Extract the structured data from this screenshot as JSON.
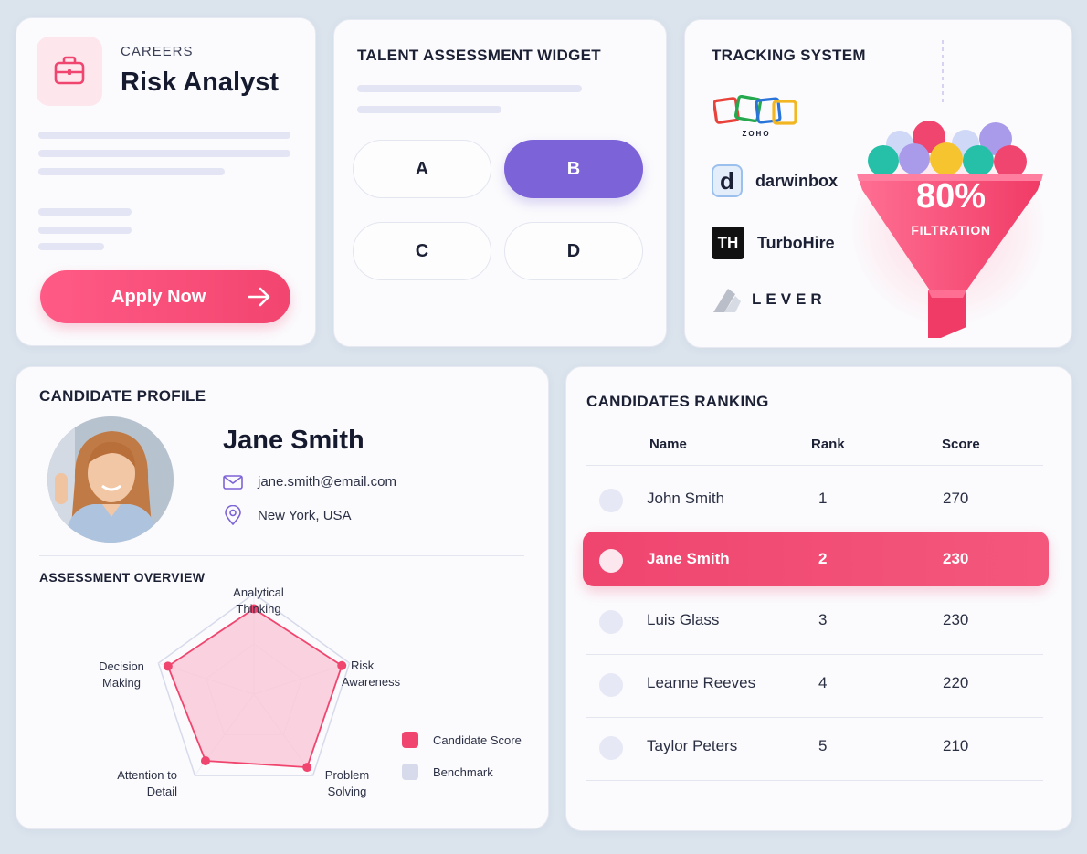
{
  "careers": {
    "label": "CAREERS",
    "job_title": "Risk Analyst",
    "apply_label": "Apply Now"
  },
  "assessment_widget": {
    "title": "TALENT ASSESSMENT WIDGET",
    "options": [
      "A",
      "B",
      "C",
      "D"
    ],
    "selected": "B"
  },
  "tracking": {
    "title": "TRACKING SYSTEM",
    "systems": [
      {
        "name": "ZOHO",
        "icon": "zoho-logo"
      },
      {
        "name": "darwinbox",
        "icon": "darwinbox-logo",
        "badge": "d"
      },
      {
        "name": "TurboHire",
        "icon": "turbohire-logo",
        "badge": "TH"
      },
      {
        "name": "LEVER",
        "icon": "lever-logo"
      }
    ],
    "funnel_percent": "80%",
    "funnel_label": "FILTRATION"
  },
  "profile": {
    "title": "CANDIDATE PROFILE",
    "name": "Jane Smith",
    "email": "jane.smith@email.com",
    "location": "New York, USA",
    "assessment_title": "ASSESSMENT OVERVIEW",
    "radar_axes": [
      "Analytical Thinking",
      "Risk Awareness",
      "Problem Solving",
      "Attention to Detail",
      "Decision Making"
    ],
    "radar_label_lines": [
      [
        "Analytical",
        "Thinking"
      ],
      [
        "Risk",
        "Awareness"
      ],
      [
        "Problem",
        "Solving"
      ],
      [
        "Attention to",
        "Detail"
      ],
      [
        "Decision",
        "Making"
      ]
    ],
    "candidate_scores": [
      0.85,
      0.92,
      0.9,
      0.82,
      0.9
    ],
    "legend": [
      "Candidate Score",
      "Benchmark"
    ],
    "colors": {
      "candidate": "#f0456f",
      "benchmark": "#d6daea"
    }
  },
  "ranking": {
    "title": "CANDIDATES RANKING",
    "columns": [
      "Name",
      "Rank",
      "Score"
    ],
    "rows": [
      {
        "name": "John Smith",
        "rank": "1",
        "score": "270"
      },
      {
        "name": "Jane Smith",
        "rank": "2",
        "score": "230"
      },
      {
        "name": "Luis Glass",
        "rank": "3",
        "score": "230"
      },
      {
        "name": "Leanne Reeves",
        "rank": "4",
        "score": "220"
      },
      {
        "name": "Taylor Peters",
        "rank": "5",
        "score": "210"
      }
    ],
    "highlighted_rank": "2"
  },
  "colors": {
    "accent_pink": "#f0456f",
    "accent_purple": "#7d63d8",
    "background": "#dbe4ed"
  }
}
